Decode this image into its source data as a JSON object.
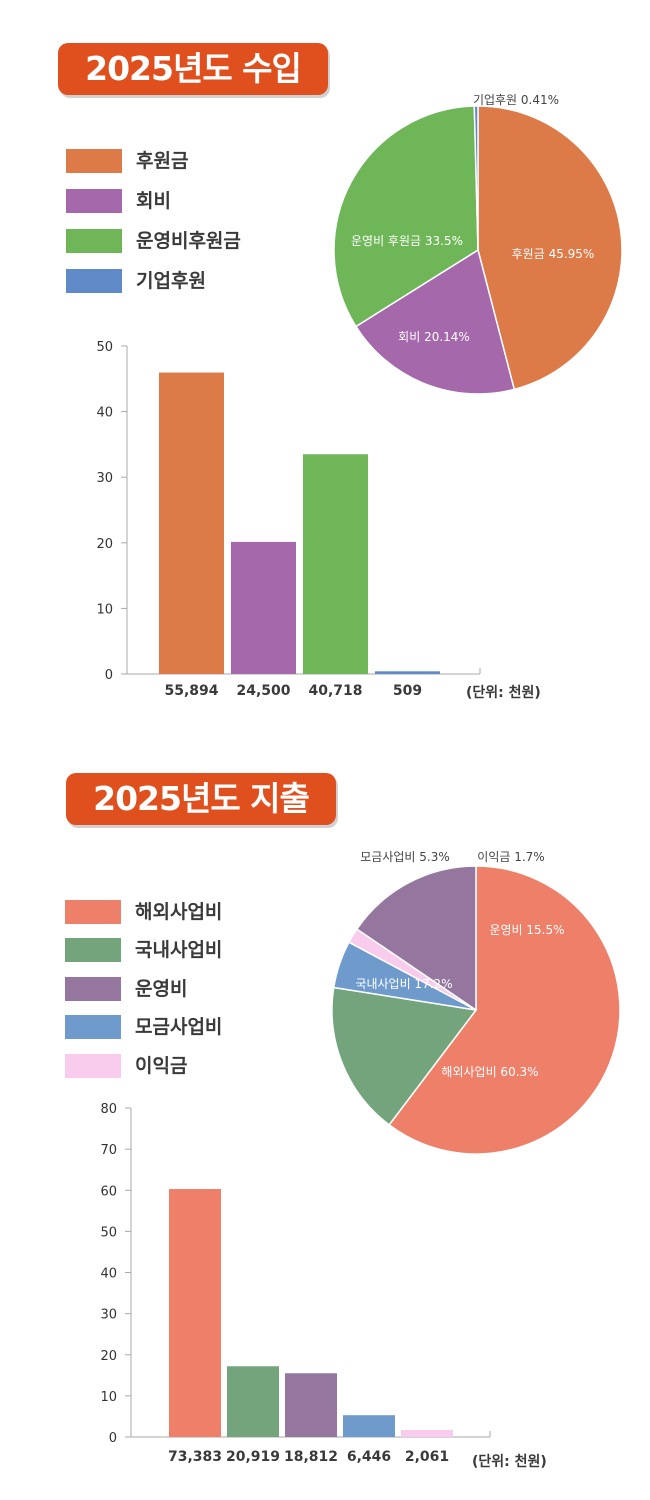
{
  "income": {
    "title": "2025년도 수입",
    "legend": [
      {
        "label": "후원금",
        "color": "#dc7a48"
      },
      {
        "label": "회비",
        "color": "#a468ab"
      },
      {
        "label": "운영비후원금",
        "color": "#6fb658"
      },
      {
        "label": "기업후원",
        "color": "#5f89c7"
      }
    ],
    "unit": "(단위: 천원)"
  },
  "expense": {
    "title": "2025년도 지출",
    "legend": [
      {
        "label": "해외사업비",
        "color": "#ee806a"
      },
      {
        "label": "국내사업비",
        "color": "#74a47c"
      },
      {
        "label": "운영비",
        "color": "#94769e"
      },
      {
        "label": "모금사업비",
        "color": "#6f9bcc"
      },
      {
        "label": "이익금",
        "color": "#f9cbec"
      }
    ],
    "unit": "(단위: 천원)"
  },
  "chart_data": [
    {
      "type": "pie",
      "labels": [
        "후원금 45.95%",
        "회비 20.14%",
        "운영비 후원금 33.5%",
        "기업후원 0.41%"
      ],
      "values": [
        45.95,
        20.14,
        33.5,
        0.41
      ],
      "colors": [
        "#dc7a48",
        "#a468ab",
        "#6fb658",
        "#5f89c7"
      ]
    },
    {
      "type": "bar",
      "categories": [
        "55,894",
        "24,500",
        "40,718",
        "509"
      ],
      "values": [
        45.95,
        20.14,
        33.5,
        0.41
      ],
      "colors": [
        "#dc7a48",
        "#a468ab",
        "#6fb658",
        "#5f89c7"
      ],
      "yticks": [
        "0",
        "10",
        "20",
        "30",
        "40",
        "50"
      ],
      "ylim": [
        0,
        50
      ]
    },
    {
      "type": "pie",
      "labels": [
        "해외사업비 60.3%",
        "국내사업비 17.2%",
        "모금사업비 5.3%",
        "이익금 1.7%",
        "운영비 15.5%"
      ],
      "values": [
        60.3,
        17.2,
        5.3,
        1.7,
        15.5
      ],
      "colors": [
        "#ee806a",
        "#74a47c",
        "#6f9bcc",
        "#f9cbec",
        "#94769e"
      ]
    },
    {
      "type": "bar",
      "categories": [
        "73,383",
        "20,919",
        "18,812",
        "6,446",
        "2,061"
      ],
      "values": [
        60.3,
        17.2,
        15.5,
        5.3,
        1.7
      ],
      "colors": [
        "#ee806a",
        "#74a47c",
        "#94769e",
        "#6f9bcc",
        "#f9cbec"
      ],
      "yticks": [
        "0",
        "10",
        "20",
        "30",
        "40",
        "50",
        "60",
        "70",
        "80"
      ],
      "ylim": [
        0,
        80
      ]
    }
  ]
}
